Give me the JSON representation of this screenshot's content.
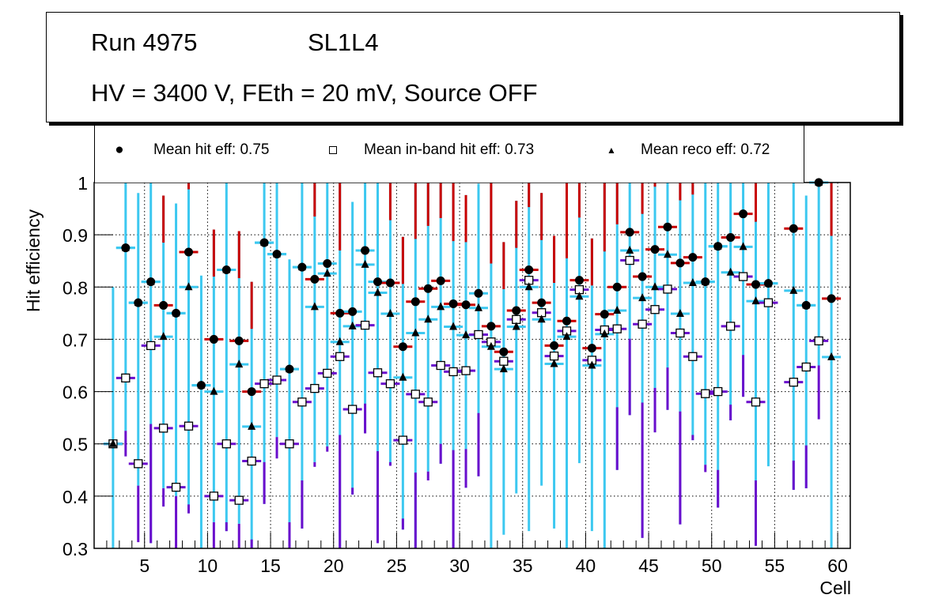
{
  "header": {
    "run_label": "Run 4975",
    "layer_label": "SL1L4",
    "conditions": "HV = 3400 V, FEth = 20 mV, Source OFF"
  },
  "legend": [
    {
      "marker": "filled-circle",
      "label": "Mean hit  eff: 0.75"
    },
    {
      "marker": "open-square",
      "label": "Mean in-band hit eff: 0.73"
    },
    {
      "marker": "filled-triangle",
      "label": "Mean reco eff: 0.72"
    }
  ],
  "colors": {
    "err_cyan": "#3cc8f0",
    "err_red": "#c80000",
    "err_purple": "#6a0dcc",
    "marker": "#000000",
    "grid": "#000000"
  },
  "chart_data": {
    "type": "scatter",
    "title": "",
    "xlabel": "Cell",
    "ylabel": "Hit efficiency",
    "xlim": [
      1,
      61
    ],
    "ylim": [
      0.3,
      1.0
    ],
    "xticks": [
      5,
      10,
      15,
      20,
      25,
      30,
      35,
      40,
      45,
      50,
      55,
      60
    ],
    "yticks": [
      0.3,
      0.4,
      0.5,
      0.6,
      0.7,
      0.8,
      0.9,
      1
    ],
    "ytick_labels": [
      "0.3",
      "0.4",
      "0.5",
      "0.6",
      "0.7",
      "0.8",
      "0.9",
      "1"
    ],
    "grid": true,
    "legend_position": "top",
    "x": [
      2.5,
      3.5,
      4.5,
      5.5,
      6.5,
      7.5,
      8.5,
      9.5,
      10.5,
      11.5,
      12.5,
      13.5,
      14.5,
      15.5,
      16.5,
      17.5,
      18.5,
      19.5,
      20.5,
      21.5,
      22.5,
      23.5,
      24.5,
      25.5,
      26.5,
      27.5,
      28.5,
      29.5,
      30.5,
      31.5,
      32.5,
      33.5,
      34.5,
      35.5,
      36.5,
      37.5,
      38.5,
      39.5,
      40.5,
      41.5,
      42.5,
      43.5,
      44.5,
      45.5,
      46.5,
      47.5,
      48.5,
      49.5,
      50.5,
      51.5,
      52.5,
      53.5,
      54.5,
      55.5,
      56.5,
      57.5,
      58.5,
      59.5
    ],
    "series": [
      {
        "name": "Mean hit  eff: 0.75",
        "marker": "filled-circle",
        "values": [
          0.5,
          0.875,
          0.77,
          0.81,
          0.765,
          0.75,
          0.867,
          0.612,
          0.7,
          0.833,
          0.697,
          0.6,
          0.885,
          0.863,
          0.643,
          0.838,
          0.815,
          0.845,
          0.75,
          0.753,
          0.87,
          0.81,
          0.808,
          0.686,
          0.772,
          0.797,
          0.812,
          0.768,
          0.766,
          0.788,
          0.725,
          0.676,
          0.755,
          0.833,
          0.77,
          0.688,
          0.735,
          0.813,
          0.683,
          0.748,
          0.8,
          0.905,
          0.82,
          0.872,
          0.915,
          0.846,
          0.857,
          0.81,
          0.878,
          0.895,
          0.94,
          0.805,
          0.807,
          null,
          0.912,
          0.765,
          1.0,
          0.778
        ]
      },
      {
        "name": "Mean in-band hit eff: 0.73",
        "marker": "open-square",
        "values": [
          0.5,
          0.626,
          0.462,
          0.688,
          0.53,
          0.417,
          0.534,
          null,
          0.4,
          0.5,
          0.392,
          0.467,
          0.615,
          0.622,
          0.5,
          0.58,
          0.606,
          0.635,
          0.667,
          0.566,
          0.727,
          0.636,
          0.615,
          0.507,
          0.595,
          0.58,
          0.65,
          0.638,
          0.64,
          0.709,
          0.695,
          0.658,
          0.738,
          0.813,
          0.751,
          0.668,
          0.716,
          0.795,
          0.66,
          0.718,
          0.72,
          0.851,
          0.729,
          0.757,
          0.796,
          0.712,
          0.667,
          0.596,
          0.6,
          0.725,
          0.82,
          0.58,
          0.77,
          null,
          0.618,
          0.647,
          0.697,
          null
        ]
      },
      {
        "name": "Mean reco eff: 0.72",
        "marker": "filled-triangle",
        "values": [
          0.5,
          0.875,
          0.77,
          0.81,
          0.705,
          0.75,
          0.8,
          0.612,
          0.6,
          0.833,
          0.652,
          0.533,
          0.885,
          0.863,
          0.643,
          0.838,
          0.762,
          0.826,
          0.695,
          0.725,
          0.843,
          0.789,
          0.749,
          0.627,
          0.712,
          0.738,
          0.762,
          0.724,
          0.708,
          0.76,
          0.686,
          0.643,
          0.724,
          0.8,
          0.738,
          0.653,
          0.705,
          0.782,
          0.65,
          0.71,
          0.755,
          0.87,
          0.779,
          0.8,
          0.862,
          0.749,
          0.808,
          0.81,
          0.878,
          0.828,
          0.877,
          0.773,
          0.807,
          null,
          0.793,
          0.765,
          1.0,
          0.666
        ]
      }
    ]
  }
}
